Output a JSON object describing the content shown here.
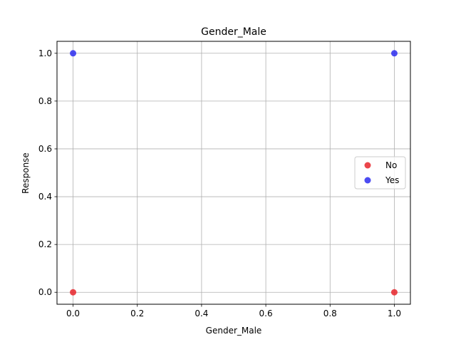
{
  "chart_data": {
    "type": "scatter",
    "title": "Gender_Male",
    "xlabel": "Gender_Male",
    "ylabel": "Response",
    "xlim": [
      -0.05,
      1.05
    ],
    "ylim": [
      -0.05,
      1.05
    ],
    "xticks": [
      "0.0",
      "0.2",
      "0.4",
      "0.6",
      "0.8",
      "1.0"
    ],
    "yticks": [
      "0.0",
      "0.2",
      "0.4",
      "0.6",
      "0.8",
      "1.0"
    ],
    "grid": true,
    "legend_position": "right",
    "series": [
      {
        "name": "No",
        "color": "#e8262b",
        "points": [
          [
            0,
            0
          ],
          [
            1,
            0
          ]
        ]
      },
      {
        "name": "Yes",
        "color": "#2d2df0",
        "points": [
          [
            0,
            1
          ],
          [
            1,
            1
          ]
        ]
      }
    ]
  }
}
